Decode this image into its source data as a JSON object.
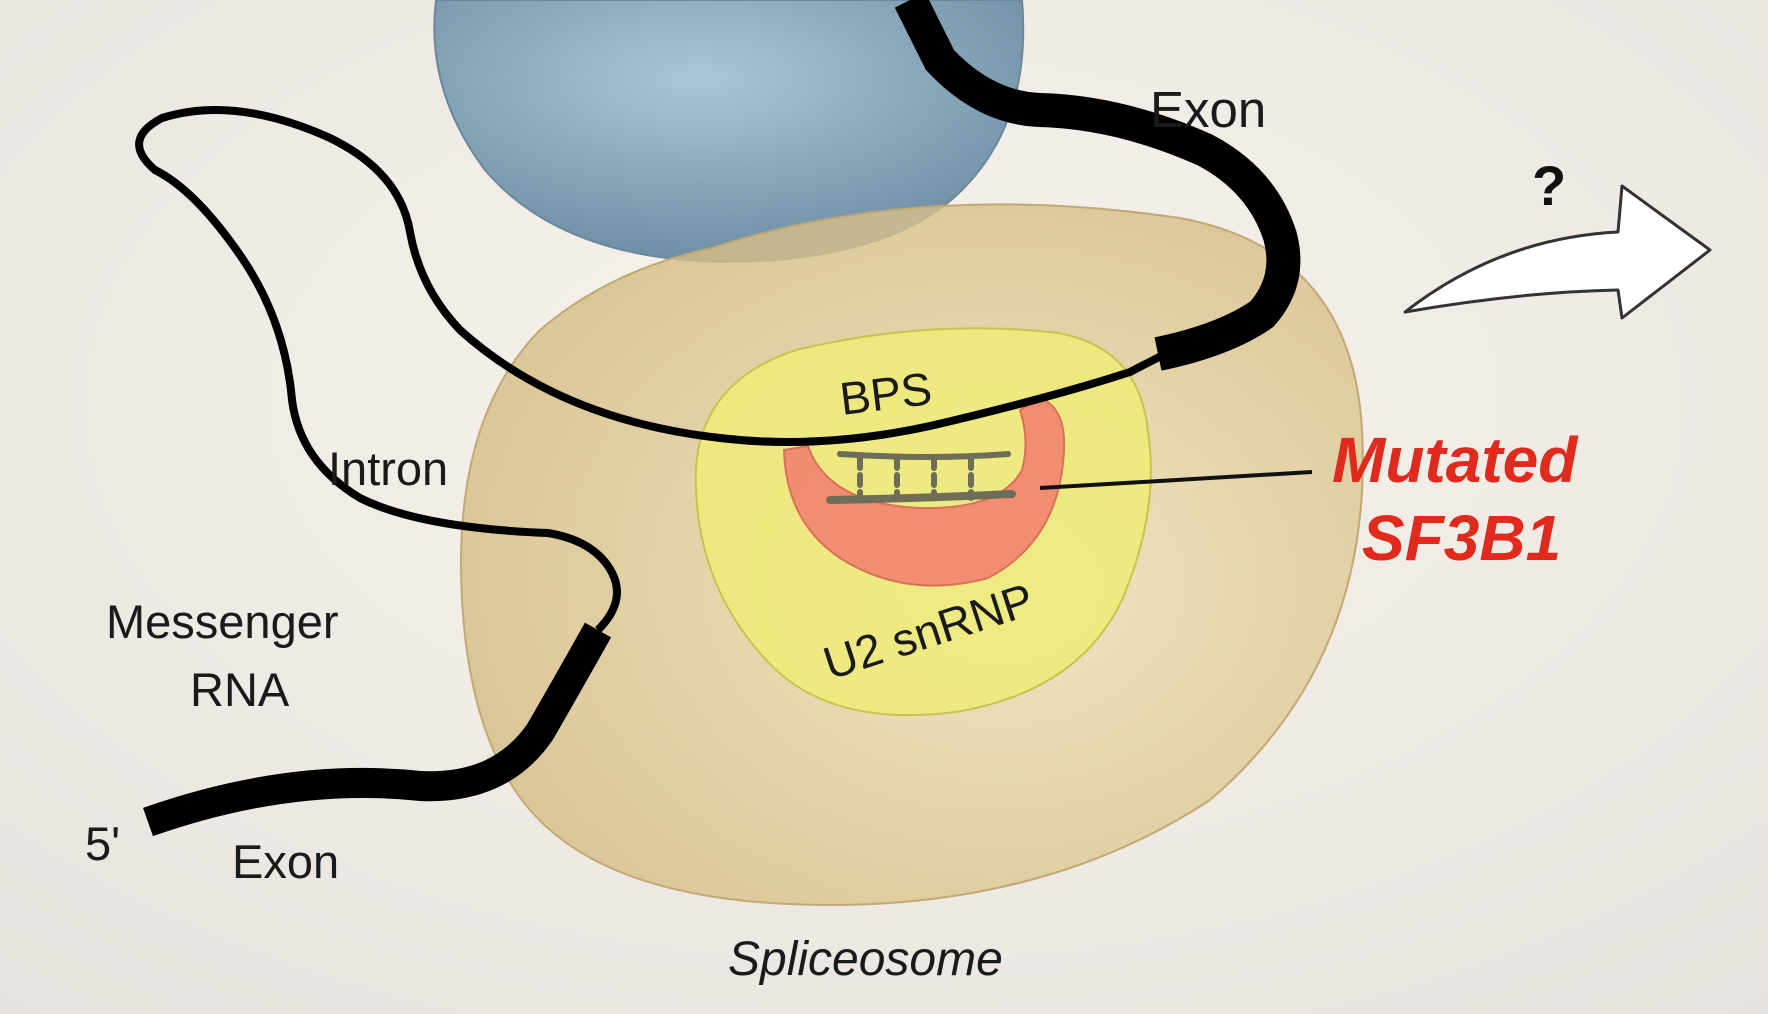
{
  "labels": {
    "exon_top": "Exon",
    "question": "?",
    "bps": "BPS",
    "intron": "Intron",
    "mutated_line1": "Mutated",
    "mutated_line2": "SF3B1",
    "messenger_line1": "Messenger",
    "messenger_line2": "RNA",
    "u2": "U2 snRNP",
    "five_prime": "5'",
    "exon_bottom": "Exon",
    "spliceosome": "Spliceosome"
  },
  "colors": {
    "mutated": "#e02a1e",
    "blue_subunit": "#7f9fb5",
    "spliceosome": "#d8c08a",
    "u2_snrnp": "#eeec7a",
    "sf3b1": "#f08870",
    "rna": "#000000"
  }
}
